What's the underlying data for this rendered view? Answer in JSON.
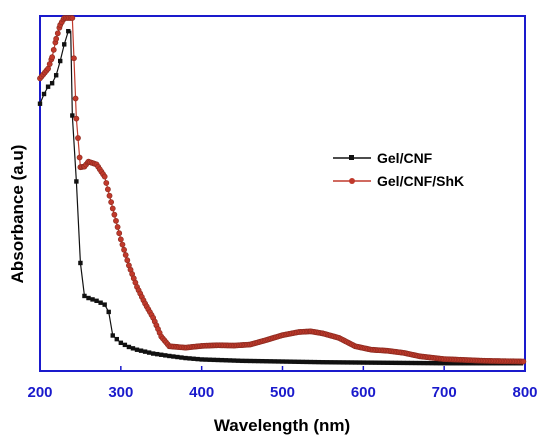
{
  "chart_data": {
    "type": "line",
    "xlabel": "Wavelength (nm)",
    "ylabel": "Absorbance (a.u)",
    "xlim": [
      200,
      800
    ],
    "ylim": [
      0,
      1
    ],
    "xticks": [
      200,
      300,
      400,
      500,
      600,
      700,
      800
    ],
    "yticks_shown": false,
    "grid": false,
    "legend_position": "right",
    "colors": {
      "axis": "#1a1acc",
      "tick_label": "#1a1acc"
    },
    "series": [
      {
        "name": "Gel/CNF",
        "color": "#111111",
        "marker": "square",
        "points": [
          [
            200,
            0.753
          ],
          [
            205,
            0.781
          ],
          [
            210,
            0.802
          ],
          [
            215,
            0.812
          ],
          [
            220,
            0.835
          ],
          [
            225,
            0.876
          ],
          [
            230,
            0.924
          ],
          [
            235,
            0.962
          ],
          [
            238,
            0.962
          ],
          [
            240,
            0.719
          ],
          [
            245,
            0.529
          ],
          [
            250,
            0.294
          ],
          [
            255,
            0.199
          ],
          [
            260,
            0.193
          ],
          [
            270,
            0.185
          ],
          [
            280,
            0.174
          ],
          [
            285,
            0.153
          ],
          [
            290,
            0.085
          ],
          [
            300,
            0.064
          ],
          [
            310,
            0.052
          ],
          [
            320,
            0.044
          ],
          [
            340,
            0.033
          ],
          [
            360,
            0.026
          ],
          [
            380,
            0.02
          ],
          [
            400,
            0.016
          ],
          [
            450,
            0.012
          ],
          [
            500,
            0.01
          ],
          [
            550,
            0.008
          ],
          [
            600,
            0.007
          ],
          [
            650,
            0.006
          ],
          [
            700,
            0.005
          ],
          [
            750,
            0.005
          ],
          [
            800,
            0.005
          ]
        ]
      },
      {
        "name": "Gel/CNF/ShK",
        "color": "#c0392b",
        "marker": "circle",
        "points": [
          [
            200,
            0.826
          ],
          [
            210,
            0.854
          ],
          [
            215,
            0.887
          ],
          [
            220,
            0.94
          ],
          [
            225,
            0.98
          ],
          [
            230,
            1.0
          ],
          [
            240,
            1.0
          ],
          [
            245,
            0.71
          ],
          [
            250,
            0.57
          ],
          [
            255,
            0.572
          ],
          [
            260,
            0.586
          ],
          [
            270,
            0.578
          ],
          [
            280,
            0.543
          ],
          [
            290,
            0.451
          ],
          [
            300,
            0.362
          ],
          [
            310,
            0.287
          ],
          [
            320,
            0.225
          ],
          [
            330,
            0.177
          ],
          [
            340,
            0.136
          ],
          [
            350,
            0.082
          ],
          [
            360,
            0.054
          ],
          [
            380,
            0.05
          ],
          [
            400,
            0.055
          ],
          [
            420,
            0.057
          ],
          [
            440,
            0.056
          ],
          [
            460,
            0.059
          ],
          [
            480,
            0.072
          ],
          [
            500,
            0.086
          ],
          [
            520,
            0.095
          ],
          [
            535,
            0.097
          ],
          [
            550,
            0.091
          ],
          [
            570,
            0.078
          ],
          [
            590,
            0.054
          ],
          [
            610,
            0.044
          ],
          [
            630,
            0.041
          ],
          [
            650,
            0.035
          ],
          [
            670,
            0.025
          ],
          [
            700,
            0.017
          ],
          [
            750,
            0.012
          ],
          [
            800,
            0.01
          ]
        ]
      }
    ]
  }
}
